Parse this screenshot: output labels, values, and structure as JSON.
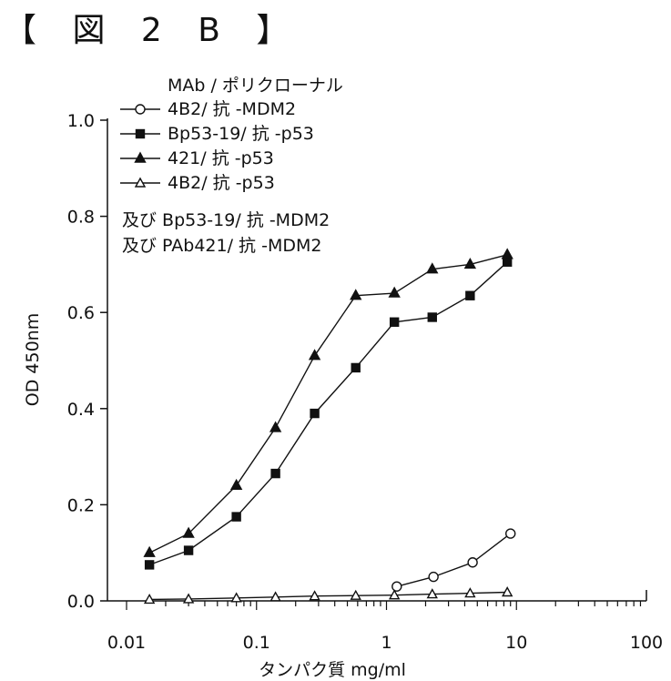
{
  "figure_label": "【 図 2 B 】",
  "chart_data": {
    "type": "line",
    "xscale": "log",
    "xlabel": "タンパク質 mg/ml",
    "ylabel": "OD 450nm",
    "xlim": [
      0.01,
      100
    ],
    "ylim": [
      0.0,
      1.0
    ],
    "x_ticks": [
      "0.01",
      "0.1",
      "1",
      "10",
      "100"
    ],
    "y_ticks": [
      "0.0",
      "0.2",
      "0.4",
      "0.6",
      "0.8",
      "1.0"
    ],
    "legend_title": "MAb / ポリクローナル",
    "legend_extra": [
      "及び Bp53-19/ 抗 -MDM2",
      "及び PAb421/ 抗 -MDM2"
    ],
    "series": [
      {
        "name": "4B2/ 抗 -MDM2",
        "marker": "open-circle",
        "x": [
          1.2,
          2.3,
          4.6,
          9.0
        ],
        "y": [
          0.03,
          0.05,
          0.08,
          0.14
        ]
      },
      {
        "name": "Bp53-19/ 抗 -p53",
        "marker": "filled-square",
        "x": [
          0.015,
          0.03,
          0.07,
          0.14,
          0.28,
          0.58,
          1.15,
          2.25,
          4.4,
          8.5
        ],
        "y": [
          0.075,
          0.105,
          0.175,
          0.265,
          0.39,
          0.485,
          0.58,
          0.59,
          0.635,
          0.705
        ]
      },
      {
        "name": "421/ 抗 -p53",
        "marker": "filled-triangle",
        "x": [
          0.015,
          0.03,
          0.07,
          0.14,
          0.28,
          0.58,
          1.15,
          2.25,
          4.4,
          8.5
        ],
        "y": [
          0.1,
          0.14,
          0.24,
          0.36,
          0.51,
          0.635,
          0.64,
          0.69,
          0.7,
          0.72
        ]
      },
      {
        "name": "4B2/ 抗 -p53",
        "marker": "open-triangle",
        "x": [
          0.015,
          0.03,
          0.07,
          0.14,
          0.28,
          0.58,
          1.15,
          2.25,
          4.4,
          8.5
        ],
        "y": [
          0.003,
          0.004,
          0.006,
          0.008,
          0.01,
          0.011,
          0.012,
          0.014,
          0.016,
          0.018
        ]
      }
    ]
  }
}
